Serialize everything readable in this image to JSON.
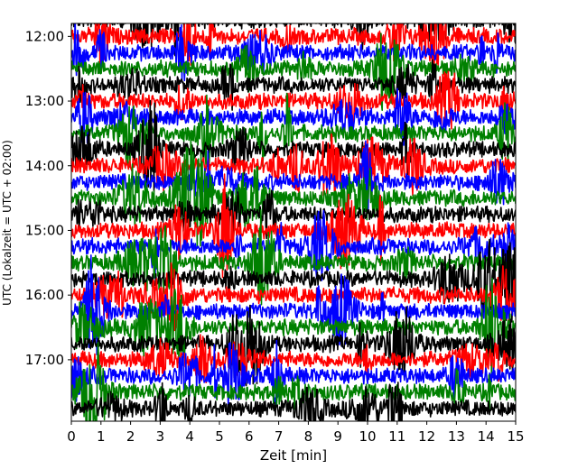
{
  "chart_data": {
    "type": "line",
    "title": "",
    "xlabel": "Zeit  [min]",
    "ylabel": "UTC (Lokalzeit = UTC + 02:00)",
    "xlim": [
      0,
      15
    ],
    "x_ticks": [
      0,
      1,
      2,
      3,
      4,
      5,
      6,
      7,
      8,
      9,
      10,
      11,
      12,
      13,
      14,
      15
    ],
    "ylim_hours": [
      11.8,
      17.95
    ],
    "y_ticks": [
      {
        "label": "12:00",
        "hour": 12
      },
      {
        "label": "13:00",
        "hour": 13
      },
      {
        "label": "14:00",
        "hour": 14
      },
      {
        "label": "15:00",
        "hour": 15
      },
      {
        "label": "16:00",
        "hour": 16
      },
      {
        "label": "17:00",
        "hour": 17
      }
    ],
    "trace_interval_min": 15,
    "trace_start": "11:45",
    "trace_end": "17:45",
    "trace_count": 25,
    "trace_colors": [
      "#000000",
      "#ff0000",
      "#0000ff",
      "#008000"
    ],
    "grid": false,
    "legend": "none"
  }
}
